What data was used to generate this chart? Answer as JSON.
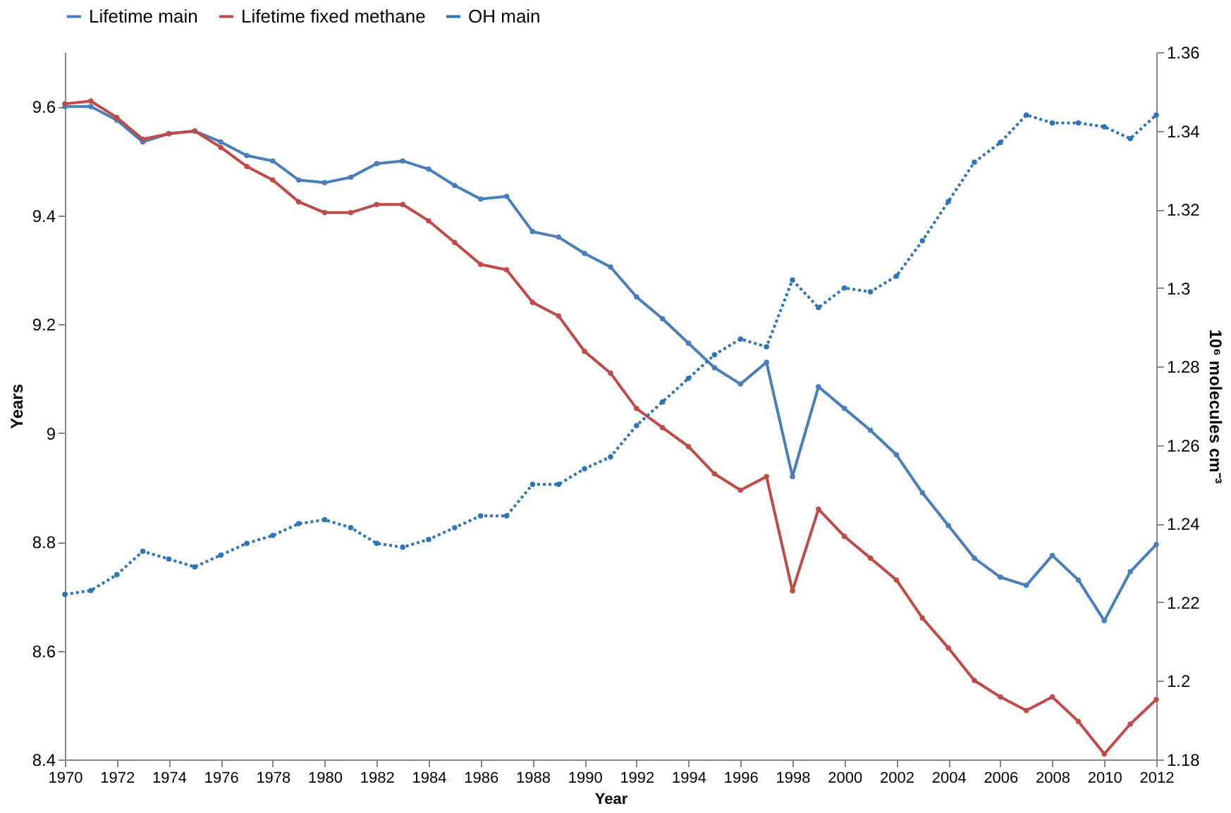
{
  "chart_data": {
    "type": "line",
    "xlabel": "Year",
    "ylabel": "Years",
    "y2label": "10⁶ molecules cm⁻³",
    "x": [
      1970,
      1971,
      1972,
      1973,
      1974,
      1975,
      1976,
      1977,
      1978,
      1979,
      1980,
      1981,
      1982,
      1983,
      1984,
      1985,
      1986,
      1987,
      1988,
      1989,
      1990,
      1991,
      1992,
      1993,
      1994,
      1995,
      1996,
      1997,
      1998,
      1999,
      2000,
      2001,
      2002,
      2003,
      2004,
      2005,
      2006,
      2007,
      2008,
      2009,
      2010,
      2011,
      2012
    ],
    "xlim": [
      1970,
      2012
    ],
    "xticks": [
      1970,
      1972,
      1974,
      1976,
      1978,
      1980,
      1982,
      1984,
      1986,
      1988,
      1990,
      1992,
      1994,
      1996,
      1998,
      2000,
      2002,
      2004,
      2006,
      2008,
      2010,
      2012
    ],
    "ylim": [
      8.4,
      9.7
    ],
    "yticks": [
      8.4,
      8.6,
      8.8,
      9,
      9.2,
      9.4,
      9.6
    ],
    "y2lim": [
      1.18,
      1.36
    ],
    "y2ticks": [
      1.18,
      1.2,
      1.22,
      1.24,
      1.26,
      1.28,
      1.3,
      1.32,
      1.34,
      1.36
    ],
    "grid": false,
    "legend": "top",
    "marker": "circle",
    "series": [
      {
        "name": "Lifetime main",
        "color": "#4a7ebb",
        "line_style": "solid",
        "values": [
          9.6,
          9.6,
          9.575,
          9.535,
          9.55,
          9.555,
          9.535,
          9.51,
          9.5,
          9.465,
          9.46,
          9.47,
          9.495,
          9.5,
          9.485,
          9.455,
          9.43,
          9.435,
          9.37,
          9.36,
          9.33,
          9.305,
          9.25,
          9.21,
          9.165,
          9.12,
          9.09,
          9.13,
          8.92,
          9.085,
          9.045,
          9.005,
          8.96,
          8.89,
          8.83,
          8.77,
          8.735,
          8.72,
          8.775,
          8.73,
          8.655,
          8.745,
          8.795
        ]
      },
      {
        "name": "Lifetime fixed methane",
        "color": "#be4b48",
        "line_style": "solid",
        "values": [
          9.605,
          9.61,
          9.58,
          9.54,
          9.55,
          9.555,
          9.525,
          9.49,
          9.465,
          9.425,
          9.405,
          9.405,
          9.42,
          9.42,
          9.39,
          9.35,
          9.31,
          9.3,
          9.24,
          9.215,
          9.15,
          9.11,
          9.045,
          9.01,
          8.975,
          8.925,
          8.895,
          8.92,
          8.71,
          8.86,
          8.81,
          8.77,
          8.73,
          8.66,
          8.605,
          8.545,
          8.515,
          8.49,
          8.515,
          8.47,
          8.41,
          8.465,
          8.51
        ]
      },
      {
        "name": "OH main",
        "color": "#2e75b6",
        "line_style": "dotted",
        "axis": "y2",
        "values": [
          1.222,
          1.223,
          1.227,
          1.233,
          1.231,
          1.229,
          1.232,
          1.235,
          1.237,
          1.24,
          1.241,
          1.239,
          1.235,
          1.234,
          1.236,
          1.239,
          1.242,
          1.242,
          1.25,
          1.25,
          1.254,
          1.257,
          1.265,
          1.271,
          1.277,
          1.283,
          1.287,
          1.285,
          1.302,
          1.295,
          1.3,
          1.299,
          1.303,
          1.312,
          1.322,
          1.332,
          1.337,
          1.344,
          1.342,
          1.342,
          1.341,
          1.338,
          1.344
        ]
      }
    ]
  }
}
